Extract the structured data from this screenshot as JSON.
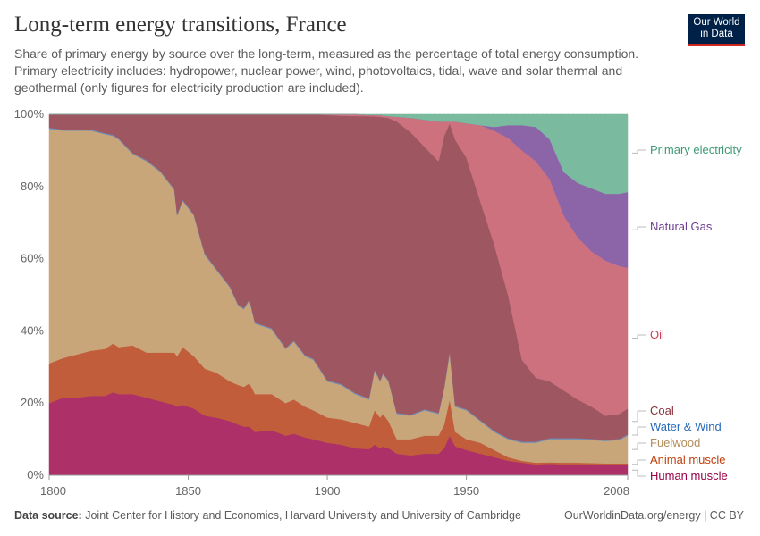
{
  "header": {
    "title": "Long-term energy transitions, France",
    "subtitle": "Share of primary energy by source over the long-term, measured as the percentage of total energy consumption. Primary electricity includes: hydropower, nuclear power, wind, photovoltaics, tidal, wave and solar thermal and geothermal (only figures for electricity production are included).",
    "logo_text": "Our World in Data"
  },
  "footer": {
    "source_label": "Data source:",
    "source_text": "Joint Center for History and Economics, Harvard University and University of Cambridge",
    "url": "OurWorldinData.org/energy | CC BY"
  },
  "chart_data": {
    "type": "area",
    "stacked": true,
    "ylim": [
      0,
      100
    ],
    "xlim": [
      1800,
      2008
    ],
    "y_ticks": [
      "0%",
      "20%",
      "40%",
      "60%",
      "80%",
      "100%"
    ],
    "x_ticks": [
      "1800",
      "1850",
      "1900",
      "1950",
      "2008"
    ],
    "grid": "horizontal dashed",
    "legend": "right, inline labels",
    "x": [
      1800,
      1805,
      1810,
      1815,
      1820,
      1823,
      1825,
      1830,
      1835,
      1840,
      1845,
      1846,
      1848,
      1852,
      1856,
      1860,
      1865,
      1868,
      1870,
      1872,
      1874,
      1880,
      1885,
      1888,
      1892,
      1895,
      1900,
      1905,
      1910,
      1915,
      1917,
      1919,
      1920,
      1922,
      1925,
      1930,
      1935,
      1940,
      1942,
      1944,
      1946,
      1950,
      1955,
      1960,
      1965,
      1970,
      1975,
      1980,
      1985,
      1990,
      1995,
      2000,
      2005,
      2008
    ],
    "series": [
      {
        "name": "Human muscle",
        "color": "#ad3068",
        "label_color": "#970046",
        "values": [
          20,
          21.5,
          21.5,
          22,
          22,
          23,
          22.5,
          22.5,
          21.5,
          20.5,
          19.5,
          19,
          19.5,
          18.5,
          16.5,
          16,
          15,
          14,
          13.5,
          13.5,
          12,
          12.5,
          11,
          11.5,
          10.5,
          10,
          9,
          8.5,
          7.5,
          7.2,
          8.5,
          7.5,
          8,
          7.5,
          6,
          5.5,
          6,
          6,
          7.5,
          11,
          8,
          7,
          6,
          5,
          4,
          3.5,
          3,
          3.2,
          3,
          3,
          3,
          2.8,
          2.8,
          2.8
        ]
      },
      {
        "name": "Animal muscle",
        "color": "#c15d3a",
        "label_color": "#c0410d",
        "values": [
          11,
          11,
          12,
          12.5,
          13,
          13.5,
          13,
          13.5,
          12.5,
          13.5,
          14.5,
          14,
          16,
          14.5,
          13,
          12.5,
          11,
          11,
          11,
          12,
          10.5,
          10,
          9,
          9.5,
          8.5,
          8,
          7,
          7,
          7,
          6.3,
          9.5,
          8.5,
          9,
          7.5,
          4,
          4.5,
          5,
          5,
          6.5,
          10,
          4,
          3,
          3,
          2,
          1,
          0.5,
          0.5,
          0.4,
          0.5,
          0.5,
          0.4,
          0.5,
          0.5,
          0.5
        ]
      },
      {
        "name": "Fuelwood",
        "color": "#c9a57a",
        "label_color": "#b28b5a",
        "values": [
          65,
          63,
          62,
          61,
          59.5,
          57.5,
          57.5,
          53,
          53,
          50,
          45,
          39,
          40.5,
          39,
          31.5,
          28.5,
          26,
          22,
          21.5,
          23,
          19.5,
          18,
          15,
          16,
          14,
          14,
          10,
          9.5,
          8,
          7.5,
          11,
          10,
          11,
          11,
          7,
          6.5,
          7,
          6,
          10,
          13,
          7,
          8,
          6,
          5,
          5,
          5,
          5.5,
          6.4,
          6.5,
          6.5,
          6.4,
          6.2,
          6.5,
          7.7
        ]
      },
      {
        "name": "Water & Wind",
        "color": "#6f8fb8",
        "label_color": "#286bbb",
        "values": [
          0.3,
          0.3,
          0.3,
          0.3,
          0.3,
          0.3,
          0.3,
          0.3,
          0.3,
          0.3,
          0.3,
          0.3,
          0.3,
          0.3,
          0.3,
          0.3,
          0.3,
          0.3,
          0.3,
          0.3,
          0.3,
          0.3,
          0.3,
          0.3,
          0.3,
          0.3,
          0.3,
          0.3,
          0.3,
          0.3,
          0.3,
          0.3,
          0.3,
          0.3,
          0.3,
          0.3,
          0.3,
          0.3,
          0.3,
          0.3,
          0.3,
          0.3,
          0.3,
          0.3,
          0.3,
          0.3,
          0.3,
          0.3,
          0.3,
          0.3,
          0.3,
          0.3,
          0.3,
          0.3
        ]
      },
      {
        "name": "Coal",
        "color": "#9e5760",
        "label_color": "#883039",
        "values": [
          3.7,
          4.2,
          4.2,
          4.2,
          5.2,
          5.7,
          6.7,
          10.7,
          12.7,
          15.7,
          20.7,
          27.7,
          23.7,
          27.7,
          38.7,
          42.7,
          47.7,
          52.7,
          53.7,
          51.2,
          57.7,
          59.2,
          64.7,
          62.7,
          66.7,
          67.7,
          73.5,
          74.3,
          76.7,
          78.2,
          70.1,
          73,
          70.9,
          72.7,
          80.7,
          78.2,
          72.7,
          69.7,
          69.7,
          63.2,
          73.7,
          69.7,
          60.7,
          51.7,
          39.7,
          22.7,
          17.7,
          15.7,
          13.2,
          10.7,
          8.9,
          6.7,
          6.9,
          7.2
        ]
      },
      {
        "name": "Oil",
        "color": "#cd717f",
        "label_color": "#c9425a",
        "values": [
          0,
          0,
          0,
          0,
          0,
          0,
          0,
          0,
          0,
          0,
          0,
          0,
          0,
          0,
          0,
          0,
          0,
          0,
          0,
          0,
          0,
          0,
          0,
          0,
          0,
          0,
          0.2,
          0.4,
          0.5,
          0.3,
          0.4,
          0.5,
          0.4,
          0.5,
          1.3,
          4,
          7.5,
          11,
          4,
          0.5,
          5,
          9.5,
          21,
          31.5,
          43.5,
          58,
          60,
          56,
          48.5,
          45,
          43,
          43,
          41,
          39
        ]
      },
      {
        "name": "Natural Gas",
        "color": "#8c65a9",
        "label_color": "#6d3e91",
        "values": [
          0,
          0,
          0,
          0,
          0,
          0,
          0,
          0,
          0,
          0,
          0,
          0,
          0,
          0,
          0,
          0,
          0,
          0,
          0,
          0,
          0,
          0,
          0,
          0,
          0,
          0,
          0,
          0,
          0,
          0,
          0,
          0,
          0,
          0,
          0,
          0,
          0,
          0,
          0,
          0,
          0,
          0,
          0,
          1,
          3.5,
          7,
          9.5,
          11,
          12,
          15,
          17.5,
          18.5,
          20,
          21
        ]
      },
      {
        "name": "Primary electricity",
        "color": "#7abba0",
        "label_color": "#3d9a74",
        "values": [
          0,
          0,
          0,
          0,
          0,
          0,
          0,
          0,
          0,
          0,
          0,
          0,
          0,
          0,
          0,
          0,
          0,
          0,
          0,
          0,
          0,
          0,
          0,
          0,
          0,
          0,
          0,
          0,
          0,
          0.2,
          0.2,
          0.2,
          0.4,
          0.5,
          0.7,
          1,
          1.5,
          2,
          2,
          2,
          2,
          2.5,
          3,
          3.5,
          3,
          3,
          3.5,
          7,
          16,
          19,
          20.5,
          22,
          22,
          21.5
        ]
      }
    ]
  }
}
